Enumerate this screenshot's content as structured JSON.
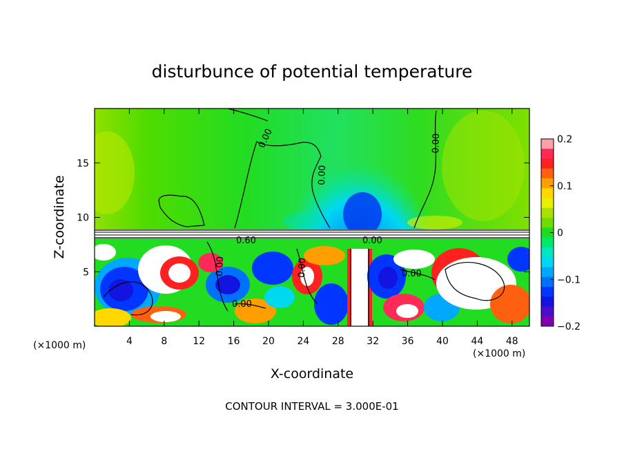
{
  "chart_data": {
    "type": "heatmap",
    "title": "disturbunce of potential temperature",
    "xlabel": "X-coordinate",
    "ylabel": "Z-coordinate",
    "x_unit": "(×1000 m)",
    "y_unit": "(×1000 m)",
    "x_range": [
      0,
      50
    ],
    "y_range": [
      0,
      20
    ],
    "x_ticks": [
      4,
      8,
      12,
      16,
      20,
      24,
      28,
      32,
      36,
      40,
      44,
      48
    ],
    "y_ticks": [
      5,
      10,
      15
    ],
    "colorbar": {
      "range": [
        -0.2,
        0.2
      ],
      "ticks": [
        0.2,
        0.1,
        0,
        -0.1,
        -0.2
      ],
      "tick_labels": [
        "0.2",
        "0.1",
        "0",
        "−0.1",
        "−0.2"
      ],
      "colors": [
        "#ff9fa8",
        "#ff2a55",
        "#ff2020",
        "#ff6010",
        "#ff9e00",
        "#ffd800",
        "#e8f000",
        "#a8e000",
        "#6fdc00",
        "#1edc1e",
        "#00e86a",
        "#00e8c0",
        "#00d8f0",
        "#00a8ff",
        "#0070ff",
        "#0036ff",
        "#1414e0",
        "#4a0ecc",
        "#8000b0"
      ]
    },
    "contour_labels": [
      "0.00",
      "0.00",
      "0.00",
      "0.00",
      "0.60",
      "0.00",
      "0.00",
      "0.00",
      "0.00"
    ],
    "contour_interval": "CONTOUR INTERVAL = 3.000E-01"
  }
}
